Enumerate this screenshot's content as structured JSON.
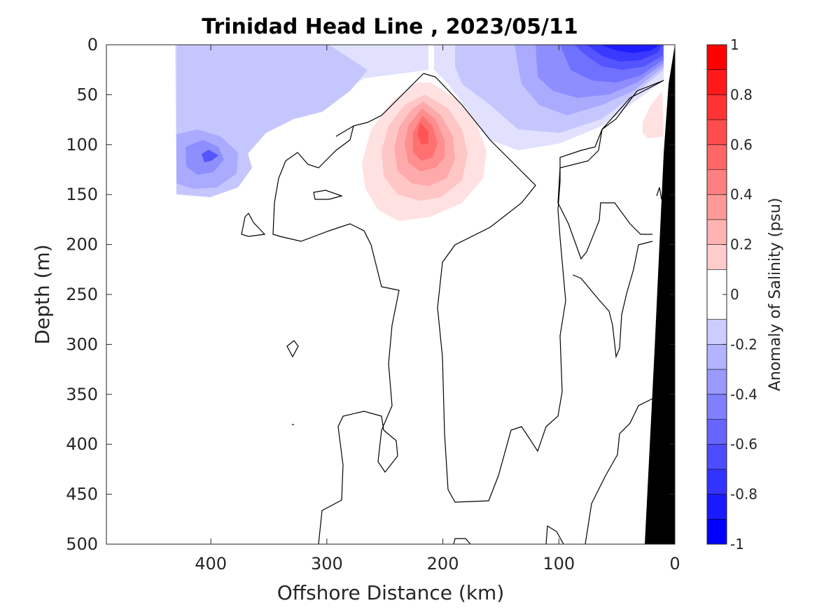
{
  "chart_data": {
    "type": "heatmap",
    "title": "Trinidad Head Line , 2023/05/11",
    "xlabel": "Offshore Distance (km)",
    "ylabel": "Depth (m)",
    "xlim": [
      490,
      0
    ],
    "ylim": [
      0,
      500
    ],
    "x_ticks": [
      "400",
      "300",
      "200",
      "100",
      "0"
    ],
    "x_tick_values": [
      400,
      300,
      200,
      100,
      0
    ],
    "y_ticks": [
      "0",
      "50",
      "100",
      "150",
      "200",
      "250",
      "300",
      "350",
      "400",
      "450",
      "500"
    ],
    "y_tick_values": [
      0,
      50,
      100,
      150,
      200,
      250,
      300,
      350,
      400,
      450,
      500
    ],
    "colorbar": {
      "label": "Anomaly of Salinity (psu)",
      "range": [
        -1,
        1
      ],
      "ticks": [
        "1",
        "0.8",
        "0.6",
        "0.4",
        "0.2",
        "0",
        "-0.2",
        "-0.4",
        "-0.6",
        "-0.8",
        "-1"
      ],
      "tick_values": [
        1,
        0.8,
        0.6,
        0.4,
        0.2,
        0,
        -0.2,
        -0.4,
        -0.6,
        -0.8,
        -1
      ],
      "levels": [
        -1,
        -0.9,
        -0.8,
        -0.7,
        -0.6,
        -0.5,
        -0.4,
        -0.3,
        -0.2,
        -0.1,
        0.1,
        0.2,
        0.3,
        0.4,
        0.5,
        0.6,
        0.7,
        0.8,
        0.9,
        1
      ],
      "color_negative": "#0000ff",
      "color_positive": "#ff0000",
      "color_zero": "#ffffff"
    },
    "features": [
      {
        "name": "fresh anomaly",
        "x": 400,
        "depth": 110,
        "value": -0.5
      },
      {
        "name": "nearshore fresh anomaly",
        "x": 50,
        "depth": 10,
        "value": -0.8
      },
      {
        "name": "salty core",
        "x": 215,
        "depth": 95,
        "value": 0.6
      },
      {
        "name": "nearshore salty patch",
        "x": 20,
        "depth": 70,
        "value": 0.2
      }
    ],
    "bathymetry_color": "#000000"
  }
}
